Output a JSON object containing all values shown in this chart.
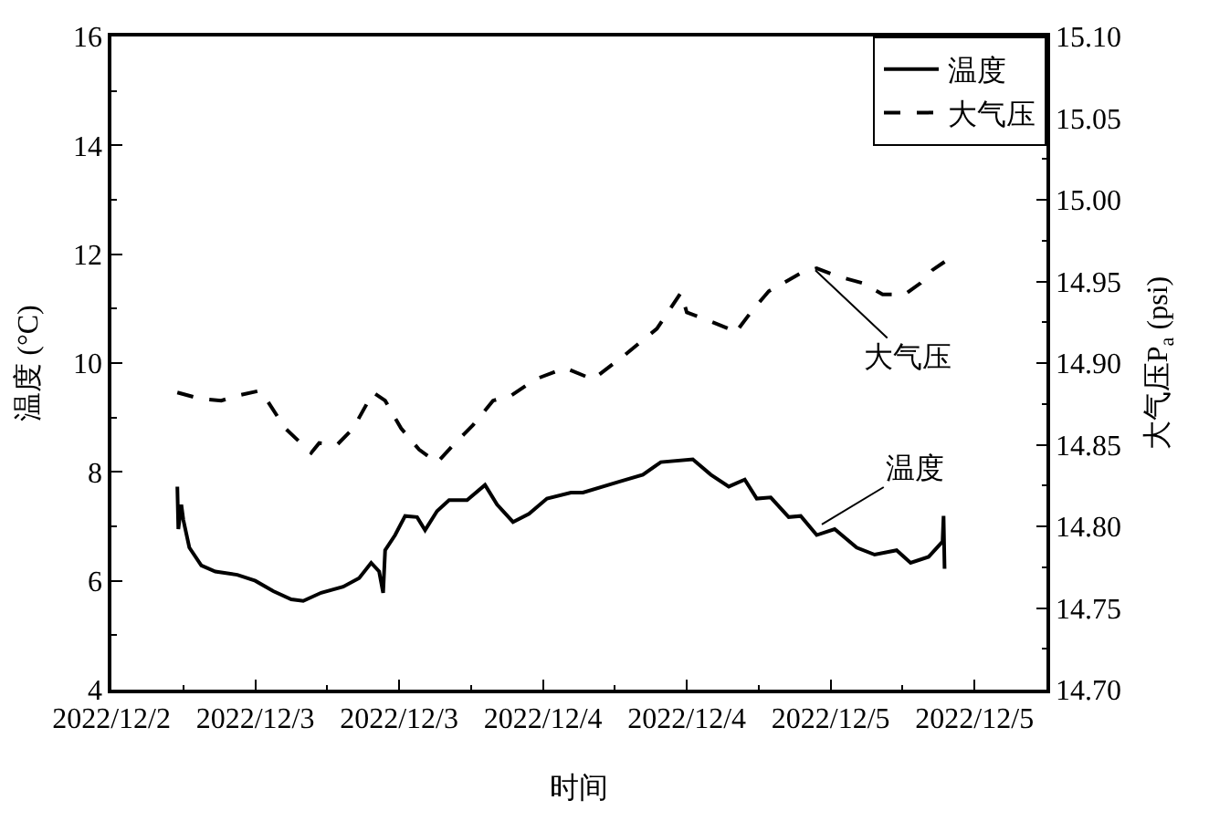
{
  "chart_data": {
    "type": "line",
    "xlabel": "时间",
    "ylabel": "温度 (°C)",
    "y2label": "大气压P$_{a}$ (psi)",
    "xlim": [
      "2022-12-02T12:00",
      "2022-12-05T18:00"
    ],
    "xticks": [
      {
        "value": "2022-12-02T12:00",
        "label": "2022/12/2"
      },
      {
        "value": "2022-12-03T00:00",
        "label": "2022/12/3"
      },
      {
        "value": "2022-12-03T12:00",
        "label": "2022/12/3"
      },
      {
        "value": "2022-12-04T00:00",
        "label": "2022/12/4"
      },
      {
        "value": "2022-12-04T12:00",
        "label": "2022/12/4"
      },
      {
        "value": "2022-12-05T00:00",
        "label": "2022/12/5"
      },
      {
        "value": "2022-12-05T12:00",
        "label": "2022/12/5"
      }
    ],
    "ylim": [
      4,
      16
    ],
    "yticks": [
      4,
      6,
      8,
      10,
      12,
      14,
      16
    ],
    "y2lim": [
      14.7,
      15.1
    ],
    "y2ticks": [
      {
        "value": 14.7,
        "label": "14.70"
      },
      {
        "value": 14.75,
        "label": "14.75"
      },
      {
        "value": 14.8,
        "label": "14.80"
      },
      {
        "value": 14.85,
        "label": "14.85"
      },
      {
        "value": 14.9,
        "label": "14.90"
      },
      {
        "value": 14.95,
        "label": "14.95"
      },
      {
        "value": 15.0,
        "label": "15.00"
      },
      {
        "value": 15.05,
        "label": "15.05"
      },
      {
        "value": 15.1,
        "label": "15.10"
      }
    ],
    "legend": "top right",
    "marker": "none",
    "series": [
      {
        "name": "温度",
        "color": "#000000",
        "line_style": "solid",
        "x": [
          "2022-12-02T17:30",
          "2022-12-02T17:35",
          "2022-12-02T17:50",
          "2022-12-02T18:00",
          "2022-12-02T18:30",
          "2022-12-02T19:30",
          "2022-12-02T20:40",
          "2022-12-02T22:30",
          "2022-12-03T00:00",
          "2022-12-03T01:30",
          "2022-12-03T03:00",
          "2022-12-03T04:00",
          "2022-12-03T05:30",
          "2022-12-03T07:20",
          "2022-12-03T08:40",
          "2022-12-03T09:40",
          "2022-12-03T10:20",
          "2022-12-03T10:40",
          "2022-12-03T10:50",
          "2022-12-03T11:40",
          "2022-12-03T12:30",
          "2022-12-03T13:30",
          "2022-12-03T14:10",
          "2022-12-03T15:10",
          "2022-12-03T16:10",
          "2022-12-03T17:40",
          "2022-12-03T19:10",
          "2022-12-03T20:10",
          "2022-12-03T21:30",
          "2022-12-03T22:50",
          "2022-12-04T00:20",
          "2022-12-04T02:20",
          "2022-12-04T03:20",
          "2022-12-04T06:20",
          "2022-12-04T08:20",
          "2022-12-04T09:50",
          "2022-12-04T12:30",
          "2022-12-04T14:00",
          "2022-12-04T15:30",
          "2022-12-04T16:50",
          "2022-12-04T17:50",
          "2022-12-04T19:00",
          "2022-12-04T20:30",
          "2022-12-04T21:30",
          "2022-12-04T22:50",
          "2022-12-05T00:20",
          "2022-12-05T02:10",
          "2022-12-05T03:40",
          "2022-12-05T05:30",
          "2022-12-05T06:40",
          "2022-12-05T08:10",
          "2022-12-05T09:20",
          "2022-12-05T09:25",
          "2022-12-05T09:30"
        ],
        "values": [
          7.73,
          6.95,
          7.4,
          7.12,
          6.61,
          6.28,
          6.17,
          6.11,
          6.0,
          5.81,
          5.66,
          5.63,
          5.78,
          5.89,
          6.05,
          6.33,
          6.17,
          5.78,
          6.56,
          6.84,
          7.19,
          7.17,
          6.93,
          7.28,
          7.48,
          7.48,
          7.76,
          7.4,
          7.08,
          7.23,
          7.51,
          7.62,
          7.62,
          7.82,
          7.95,
          8.18,
          8.23,
          7.95,
          7.73,
          7.86,
          7.51,
          7.53,
          7.17,
          7.19,
          6.84,
          6.95,
          6.61,
          6.48,
          6.56,
          6.33,
          6.44,
          6.72,
          7.19,
          6.22
        ]
      },
      {
        "name": "大气压",
        "color": "#000000",
        "line_style": "dashed",
        "axis": "y2",
        "x": [
          "2022-12-02T17:30",
          "2022-12-02T19:30",
          "2022-12-02T21:10",
          "2022-12-02T22:30",
          "2022-12-03T00:20",
          "2022-12-03T01:00",
          "2022-12-03T02:30",
          "2022-12-03T04:40",
          "2022-12-03T05:20",
          "2022-12-03T06:50",
          "2022-12-03T08:10",
          "2022-12-03T09:50",
          "2022-12-03T10:50",
          "2022-12-03T12:10",
          "2022-12-03T13:40",
          "2022-12-03T15:10",
          "2022-12-03T16:40",
          "2022-12-03T18:10",
          "2022-12-03T19:50",
          "2022-12-03T21:20",
          "2022-12-03T23:20",
          "2022-12-04T01:50",
          "2022-12-04T04:10",
          "2022-12-04T06:50",
          "2022-12-04T09:30",
          "2022-12-04T11:30",
          "2022-12-04T12:00",
          "2022-12-04T13:30",
          "2022-12-04T15:30",
          "2022-12-04T16:00",
          "2022-12-04T17:20",
          "2022-12-04T18:50",
          "2022-12-04T21:30",
          "2022-12-04T22:50",
          "2022-12-05T00:40",
          "2022-12-05T02:40",
          "2022-12-05T04:20",
          "2022-12-05T06:10",
          "2022-12-05T07:30",
          "2022-12-05T08:30",
          "2022-12-05T09:30"
        ],
        "values": [
          14.882,
          14.878,
          14.877,
          14.88,
          14.883,
          14.877,
          14.86,
          14.845,
          14.851,
          14.85,
          14.86,
          14.882,
          14.877,
          14.86,
          14.847,
          14.839,
          14.851,
          14.862,
          14.877,
          14.88,
          14.89,
          14.897,
          14.89,
          14.905,
          14.921,
          14.943,
          14.931,
          14.927,
          14.921,
          14.918,
          14.931,
          14.944,
          14.955,
          14.958,
          14.953,
          14.949,
          14.942,
          14.942,
          14.949,
          14.957,
          14.962
        ]
      }
    ],
    "annotations": [
      {
        "text": "大气压",
        "x": "2022-12-04T22:30",
        "y": 11.75
      },
      {
        "text": "温度",
        "x": "2022-12-04T23:00",
        "y": 7.0
      }
    ]
  }
}
